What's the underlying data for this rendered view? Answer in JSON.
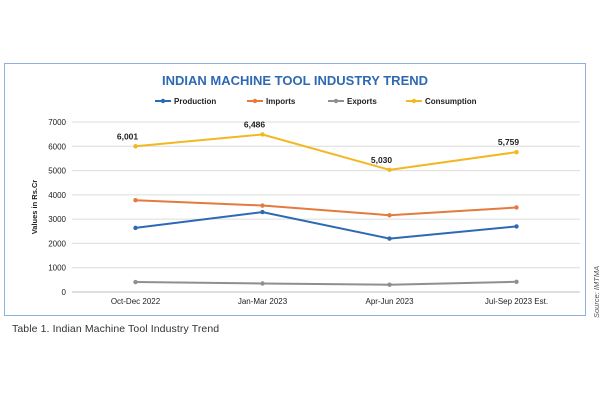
{
  "chart_data": {
    "type": "line",
    "title": "INDIAN MACHINE TOOL INDUSTRY TREND",
    "ylabel": "Values in Rs.Cr",
    "xlabel": "",
    "categories": [
      "Oct-Dec 2022",
      "Jan-Mar 2023",
      "Apr-Jun 2023",
      "Jul-Sep 2023 Est."
    ],
    "ylim": [
      0,
      7000
    ],
    "yticks": [
      0,
      1000,
      2000,
      3000,
      4000,
      5000,
      6000,
      7000
    ],
    "ytick_labels": [
      "0",
      "1000",
      "2000",
      "3000",
      "4000",
      "5000",
      "6000",
      "7000"
    ],
    "grid": "horizontal",
    "legend": "top",
    "series": [
      {
        "name": "Production",
        "color": "#2e69b3",
        "values": [
          2640,
          3290,
          2200,
          2700
        ]
      },
      {
        "name": "Imports",
        "color": "#e57a3c",
        "values": [
          3780,
          3560,
          3160,
          3480
        ]
      },
      {
        "name": "Exports",
        "color": "#8f8f8f",
        "values": [
          410,
          350,
          300,
          420
        ]
      },
      {
        "name": "Consumption",
        "color": "#f2b821",
        "values": [
          6001,
          6486,
          5030,
          5759
        ]
      }
    ],
    "data_labels": {
      "series": "Consumption",
      "labels": [
        "6,001",
        "6,486",
        "5,030",
        "5,759"
      ]
    },
    "title_color": "#2e69b3"
  },
  "source_note": "Source: IMTMA",
  "caption": "Table 1. Indian Machine Tool Industry Trend"
}
